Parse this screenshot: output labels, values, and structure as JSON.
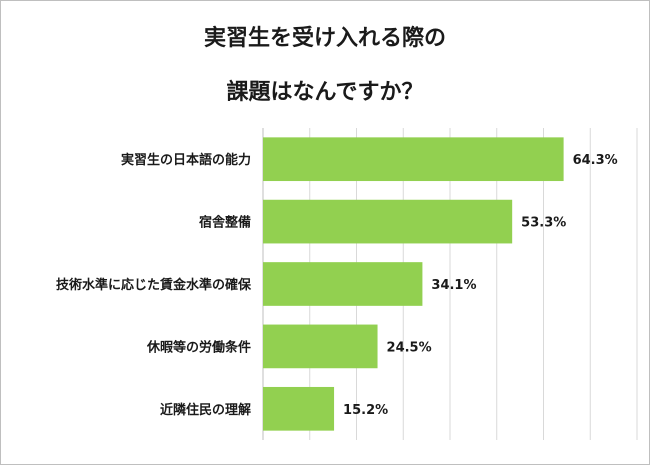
{
  "chart_data": {
    "type": "bar",
    "orientation": "horizontal",
    "title": "実習生を受け入れる際の",
    "subtitle": "課題はなんですか？",
    "categories": [
      "実習生の日本語の能力",
      "宿舎整備",
      "技術水準に応じた賃金水準の確保",
      "休暇等の労働条件",
      "近隣住民の理解"
    ],
    "values": [
      64.3,
      53.3,
      34.1,
      24.5,
      15.2
    ],
    "value_labels": [
      "64.3%",
      "53.3%",
      "34.1%",
      "24.5%",
      "15.2%"
    ],
    "xlim": [
      0,
      80
    ],
    "grid": true,
    "bar_color": "#92d050",
    "gridline_color": "#d9d9d9",
    "axis_color": "#bfbfbf"
  }
}
